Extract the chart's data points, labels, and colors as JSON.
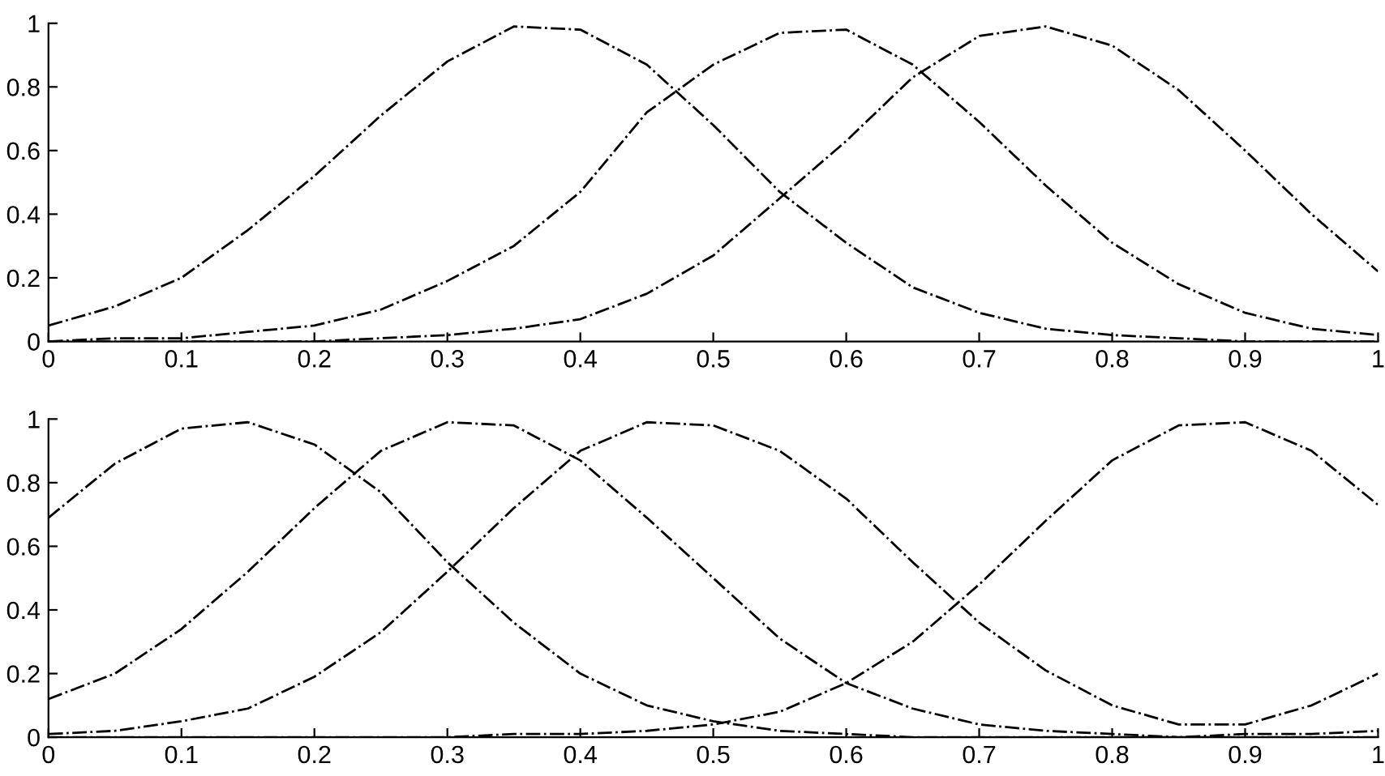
{
  "chart_data": [
    {
      "type": "line",
      "line_style": "dashed",
      "grid": false,
      "xlim": [
        0,
        1
      ],
      "ylim": [
        0,
        1
      ],
      "xticks": [
        0,
        0.1,
        0.2,
        0.3,
        0.4,
        0.5,
        0.6,
        0.7,
        0.8,
        0.9,
        1
      ],
      "yticks": [
        0,
        0.2,
        0.4,
        0.6,
        0.8,
        1
      ],
      "x": [
        0,
        0.05,
        0.1,
        0.15,
        0.2,
        0.25,
        0.3,
        0.35,
        0.4,
        0.45,
        0.5,
        0.55,
        0.6,
        0.65,
        0.7,
        0.75,
        0.8,
        0.85,
        0.9,
        0.95,
        1
      ],
      "series": [
        {
          "color": "#000000",
          "values": [
            0.05,
            0.11,
            0.2,
            0.35,
            0.52,
            0.71,
            0.88,
            0.99,
            0.98,
            0.87,
            0.68,
            0.47,
            0.31,
            0.17,
            0.09,
            0.04,
            0.02,
            0.01,
            0.0,
            0.0,
            0.0
          ]
        },
        {
          "color": "#000000",
          "values": [
            0.0,
            0.01,
            0.01,
            0.03,
            0.05,
            0.1,
            0.19,
            0.3,
            0.47,
            0.72,
            0.87,
            0.97,
            0.98,
            0.87,
            0.69,
            0.49,
            0.31,
            0.18,
            0.09,
            0.04,
            0.02
          ]
        },
        {
          "color": "#000000",
          "values": [
            0.0,
            0.0,
            0.0,
            0.0,
            0.0,
            0.01,
            0.02,
            0.04,
            0.07,
            0.15,
            0.27,
            0.45,
            0.63,
            0.83,
            0.96,
            0.99,
            0.93,
            0.79,
            0.6,
            0.4,
            0.22
          ]
        }
      ]
    },
    {
      "type": "line",
      "line_style": "dashed",
      "grid": false,
      "xlim": [
        0,
        1
      ],
      "ylim": [
        0,
        1
      ],
      "xticks": [
        0,
        0.1,
        0.2,
        0.3,
        0.4,
        0.5,
        0.6,
        0.7,
        0.8,
        0.9,
        1
      ],
      "yticks": [
        0,
        0.2,
        0.4,
        0.6,
        0.8,
        1
      ],
      "x": [
        0,
        0.05,
        0.1,
        0.15,
        0.2,
        0.25,
        0.3,
        0.35,
        0.4,
        0.45,
        0.5,
        0.55,
        0.6,
        0.65,
        0.7,
        0.75,
        0.8,
        0.85,
        0.9,
        0.95,
        1
      ],
      "series": [
        {
          "color": "#000000",
          "values": [
            0.69,
            0.86,
            0.97,
            0.99,
            0.92,
            0.77,
            0.55,
            0.36,
            0.2,
            0.1,
            0.05,
            0.02,
            0.01,
            0.0,
            0.0,
            0.0,
            0.0,
            0.0,
            0.01,
            0.01,
            0.02
          ]
        },
        {
          "color": "#000000",
          "values": [
            0.12,
            0.2,
            0.34,
            0.52,
            0.72,
            0.9,
            0.99,
            0.98,
            0.87,
            0.69,
            0.5,
            0.31,
            0.17,
            0.09,
            0.04,
            0.02,
            0.01,
            0.0,
            0.0,
            0.0,
            0.0
          ]
        },
        {
          "color": "#000000",
          "values": [
            0.01,
            0.02,
            0.05,
            0.09,
            0.19,
            0.33,
            0.52,
            0.72,
            0.9,
            0.99,
            0.98,
            0.9,
            0.75,
            0.55,
            0.36,
            0.21,
            0.1,
            0.04,
            0.04,
            0.1,
            0.2
          ]
        },
        {
          "color": "#000000",
          "values": [
            0.0,
            0.0,
            0.0,
            0.0,
            0.0,
            0.0,
            0.0,
            0.01,
            0.01,
            0.02,
            0.04,
            0.08,
            0.17,
            0.3,
            0.48,
            0.68,
            0.87,
            0.98,
            0.99,
            0.9,
            0.73
          ]
        }
      ]
    }
  ]
}
